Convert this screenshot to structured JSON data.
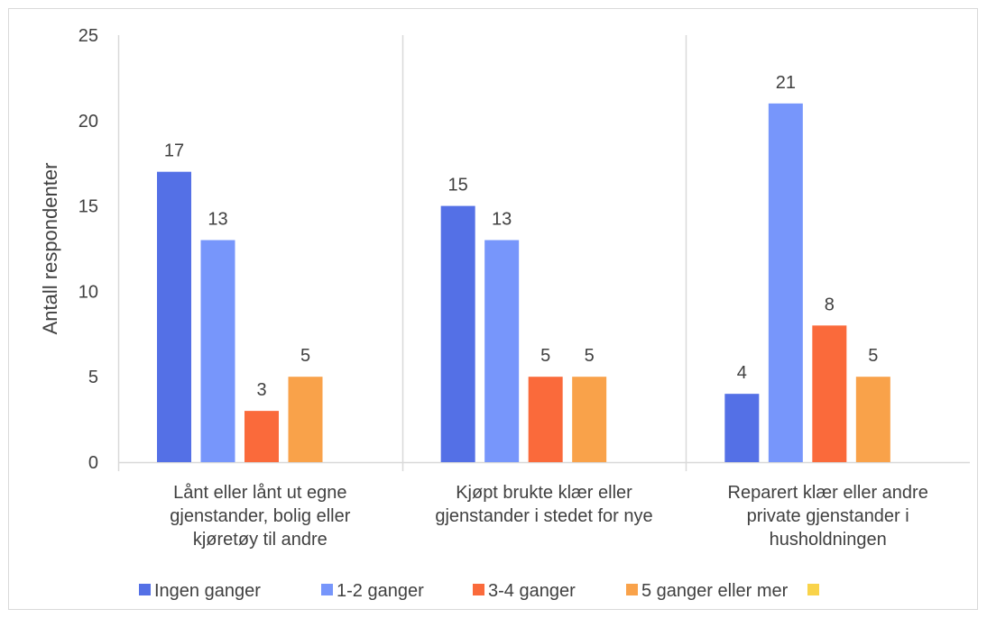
{
  "chart_data": {
    "type": "bar",
    "title": "",
    "xlabel": "",
    "ylabel": "Antall respondenter",
    "ylim": [
      0,
      25
    ],
    "yticks": [
      "0",
      "5",
      "10",
      "15",
      "20",
      "25"
    ],
    "grid": false,
    "legend_position": "bottom",
    "categories": [
      [
        "Lånt eller lånt ut egne",
        "gjenstander, bolig eller",
        "kjøretøy til andre"
      ],
      [
        "Kjøpt brukte klær eller",
        "gjenstander i stedet for nye"
      ],
      [
        "Reparert klær eller andre",
        "private gjenstander i",
        "husholdningen"
      ]
    ],
    "series": [
      {
        "name": "Ingen ganger",
        "color": "#5470e6",
        "values": [
          17,
          15,
          4
        ]
      },
      {
        "name": "1-2 ganger",
        "color": "#7796fb",
        "values": [
          13,
          13,
          21
        ]
      },
      {
        "name": "3-4 ganger",
        "color": "#fa6a3b",
        "values": [
          3,
          5,
          8
        ]
      },
      {
        "name": "5 ganger eller mer",
        "color": "#f9a24a",
        "values": [
          5,
          5,
          5
        ]
      },
      {
        "name": "",
        "color": "#f9d34a",
        "values": [
          null,
          null,
          null
        ]
      }
    ]
  }
}
